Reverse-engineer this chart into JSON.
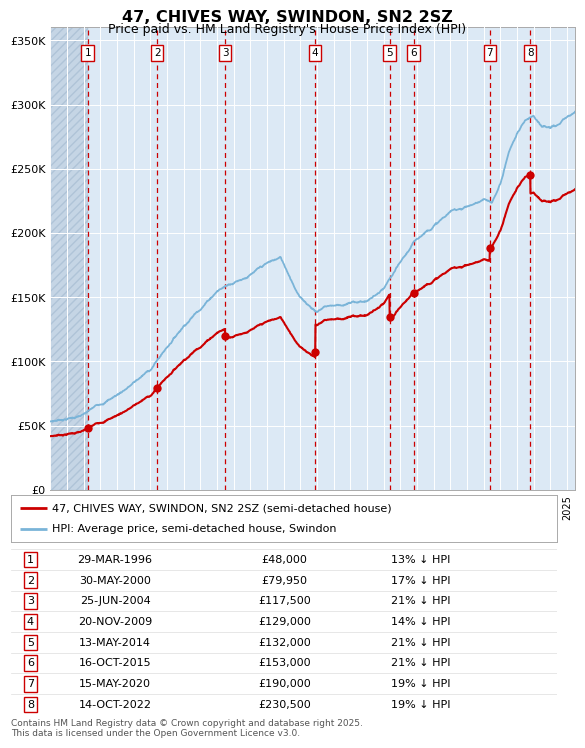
{
  "title": "47, CHIVES WAY, SWINDON, SN2 2SZ",
  "subtitle": "Price paid vs. HM Land Registry's House Price Index (HPI)",
  "legend_line1": "47, CHIVES WAY, SWINDON, SN2 2SZ (semi-detached house)",
  "legend_line2": "HPI: Average price, semi-detached house, Swindon",
  "footer": "Contains HM Land Registry data © Crown copyright and database right 2025.\nThis data is licensed under the Open Government Licence v3.0.",
  "hpi_color": "#7ab4d8",
  "price_color": "#cc0000",
  "vline_color": "#cc0000",
  "background_color": "#dce9f5",
  "ylim": [
    0,
    360000
  ],
  "yticks": [
    0,
    50000,
    100000,
    150000,
    200000,
    250000,
    300000,
    350000
  ],
  "ytick_labels": [
    "£0",
    "£50K",
    "£100K",
    "£150K",
    "£200K",
    "£250K",
    "£300K",
    "£350K"
  ],
  "xmin": 1994.0,
  "xmax": 2025.5,
  "sales": [
    {
      "num": 1,
      "date_x": 1996.24,
      "price": 48000
    },
    {
      "num": 2,
      "date_x": 2000.41,
      "price": 79950
    },
    {
      "num": 3,
      "date_x": 2004.48,
      "price": 117500
    },
    {
      "num": 4,
      "date_x": 2009.89,
      "price": 129000
    },
    {
      "num": 5,
      "date_x": 2014.36,
      "price": 132000
    },
    {
      "num": 6,
      "date_x": 2015.79,
      "price": 153000
    },
    {
      "num": 7,
      "date_x": 2020.37,
      "price": 190000
    },
    {
      "num": 8,
      "date_x": 2022.79,
      "price": 230500
    }
  ],
  "table_rows": [
    {
      "num": 1,
      "date": "29-MAR-1996",
      "price": "£48,000",
      "pct": "13% ↓ HPI"
    },
    {
      "num": 2,
      "date": "30-MAY-2000",
      "price": "£79,950",
      "pct": "17% ↓ HPI"
    },
    {
      "num": 3,
      "date": "25-JUN-2004",
      "price": "£117,500",
      "pct": "21% ↓ HPI"
    },
    {
      "num": 4,
      "date": "20-NOV-2009",
      "price": "£129,000",
      "pct": "14% ↓ HPI"
    },
    {
      "num": 5,
      "date": "13-MAY-2014",
      "price": "£132,000",
      "pct": "21% ↓ HPI"
    },
    {
      "num": 6,
      "date": "16-OCT-2015",
      "price": "£153,000",
      "pct": "21% ↓ HPI"
    },
    {
      "num": 7,
      "date": "15-MAY-2020",
      "price": "£190,000",
      "pct": "19% ↓ HPI"
    },
    {
      "num": 8,
      "date": "14-OCT-2022",
      "price": "£230,500",
      "pct": "19% ↓ HPI"
    }
  ]
}
